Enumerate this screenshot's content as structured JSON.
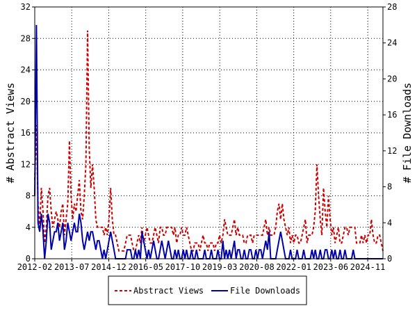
{
  "chart_data": {
    "type": "line",
    "ylabel": "# Abstract Views",
    "y2label": "# File Downloads",
    "ylim": [
      0,
      32
    ],
    "y2lim": [
      0,
      28
    ],
    "yticks": [
      0,
      4,
      8,
      12,
      16,
      20,
      24,
      28,
      32
    ],
    "y2ticks": [
      0,
      4,
      8,
      12,
      16,
      20,
      24,
      28
    ],
    "x_tick_labels": [
      "2012-02",
      "2013-07",
      "2014-12",
      "2016-05",
      "2017-10",
      "2019-03",
      "2020-08",
      "2022-01",
      "2023-06",
      "2024-11"
    ],
    "x_start": "2012-02",
    "x_end": "2025-06",
    "legend_position": "bottom-center",
    "series": [
      {
        "name": "Abstract Views",
        "axis": "left",
        "color": "#cc0000",
        "style": "dashed",
        "values": [
          10,
          17,
          7,
          4,
          9,
          6,
          2,
          4,
          8,
          9,
          6,
          4,
          5,
          6,
          5,
          4,
          6,
          7,
          3,
          5,
          7,
          15,
          8,
          5,
          7,
          6,
          8,
          10,
          6,
          5,
          8,
          12,
          29,
          14,
          9,
          12,
          9,
          5,
          4,
          4,
          4,
          4,
          3,
          4,
          3,
          5,
          9,
          5,
          3,
          3,
          2,
          1,
          1,
          1,
          1,
          2,
          3,
          3,
          3,
          2,
          1,
          1,
          2,
          3,
          2,
          4,
          2,
          3,
          4,
          3,
          2,
          2,
          3,
          4,
          3,
          2,
          4,
          4,
          3,
          3,
          4,
          4,
          4,
          4,
          3,
          4,
          2,
          3,
          3,
          4,
          3,
          3,
          4,
          3,
          2,
          1,
          1,
          2,
          2,
          2,
          1,
          2,
          3,
          2,
          2,
          1,
          2,
          2,
          2,
          1,
          2,
          2,
          3,
          2,
          3,
          5,
          4,
          3,
          3,
          3,
          4,
          5,
          3,
          4,
          3,
          3,
          3,
          2,
          2,
          3,
          3,
          3,
          2,
          3,
          3,
          3,
          3,
          3,
          3,
          4,
          5,
          3,
          4,
          3,
          3,
          3,
          4,
          6,
          7,
          5,
          7,
          5,
          4,
          3,
          4,
          2,
          3,
          2,
          3,
          3,
          2,
          2,
          3,
          4,
          5,
          2,
          3,
          3,
          3,
          4,
          6,
          12,
          8,
          5,
          3,
          9,
          6,
          4,
          8,
          5,
          3,
          4,
          2,
          3,
          4,
          2,
          2,
          3,
          4,
          4,
          3,
          4,
          4,
          4,
          4,
          2,
          2,
          2,
          3,
          2,
          3,
          2,
          3,
          3,
          5,
          3,
          2,
          2,
          3,
          3,
          2,
          1
        ]
      },
      {
        "name": "File Downloads",
        "axis": "right",
        "color": "#0000aa",
        "style": "solid",
        "values": [
          7,
          26,
          4,
          3,
          5,
          3,
          0,
          2,
          5,
          4,
          1,
          2,
          3,
          3,
          4,
          2,
          3,
          4,
          1,
          2,
          4,
          3,
          2,
          3,
          4,
          3,
          3,
          5,
          4,
          2,
          1,
          2,
          3,
          2,
          3,
          3,
          2,
          1,
          2,
          2,
          1,
          0,
          1,
          0,
          1,
          2,
          3,
          2,
          1,
          0,
          0,
          0,
          0,
          0,
          0,
          0,
          1,
          1,
          1,
          0,
          0,
          1,
          0,
          1,
          0,
          3,
          2,
          1,
          0,
          1,
          0,
          1,
          2,
          1,
          0,
          0,
          1,
          2,
          1,
          0,
          1,
          2,
          1,
          0,
          0,
          1,
          0,
          1,
          0,
          0,
          1,
          0,
          1,
          0,
          0,
          1,
          0,
          0,
          1,
          0,
          0,
          0,
          0,
          1,
          0,
          0,
          0,
          1,
          0,
          0,
          0,
          1,
          0,
          0,
          2,
          0,
          1,
          0,
          1,
          0,
          1,
          2,
          0,
          1,
          1,
          0,
          0,
          1,
          0,
          0,
          1,
          1,
          0,
          0,
          1,
          0,
          1,
          1,
          0,
          1,
          2,
          1,
          3,
          0,
          0,
          0,
          0,
          1,
          2,
          3,
          2,
          1,
          0,
          0,
          0,
          1,
          0,
          0,
          0,
          1,
          0,
          0,
          0,
          1,
          0,
          0,
          0,
          0,
          1,
          0,
          1,
          0,
          0,
          1,
          0,
          0,
          1,
          1,
          0,
          0,
          1,
          0,
          1,
          0,
          0,
          1,
          0,
          0,
          1,
          0,
          0,
          0,
          0,
          1,
          0,
          0,
          0,
          0,
          0,
          0,
          0,
          0,
          0,
          0,
          0,
          0,
          0,
          0,
          0,
          0,
          0,
          0
        ]
      }
    ]
  }
}
